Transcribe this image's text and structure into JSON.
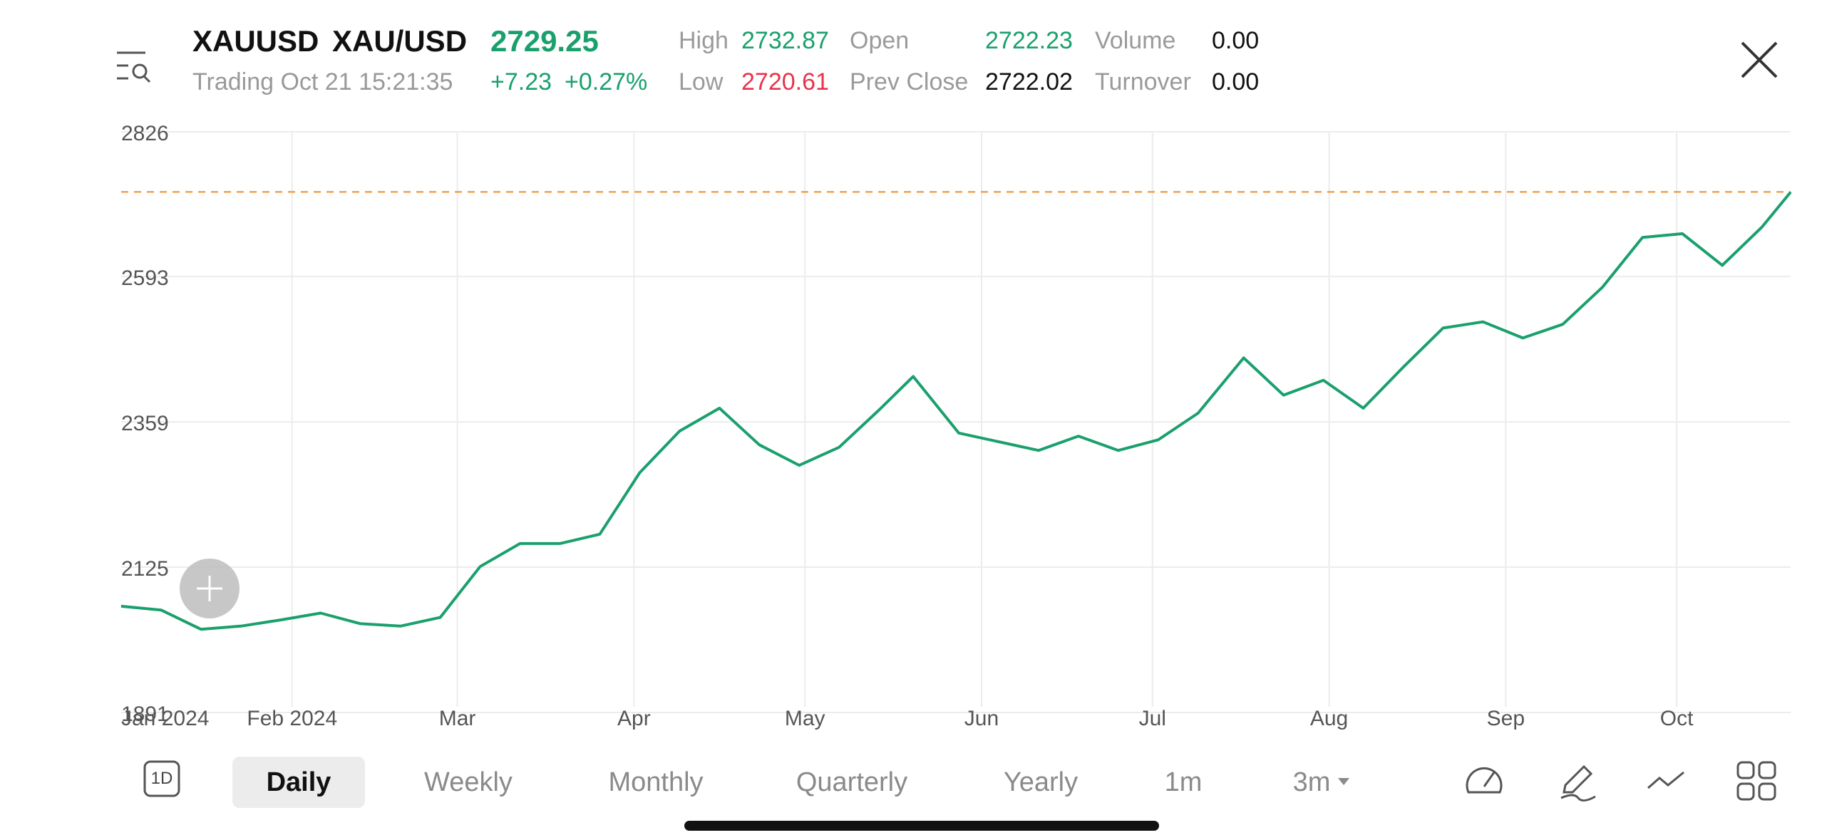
{
  "header": {
    "symbol": "XAUUSD",
    "name": "XAU/USD",
    "price": "2729.25",
    "status": "Trading Oct 21 15:21:35",
    "change": "+7.23",
    "change_pct": "+0.27%",
    "stats": {
      "high_label": "High",
      "high": "2732.87",
      "low_label": "Low",
      "low": "2720.61",
      "open_label": "Open",
      "open": "2722.23",
      "prev_close_label": "Prev Close",
      "prev_close": "2722.02",
      "volume_label": "Volume",
      "volume": "0.00",
      "turnover_label": "Turnover",
      "turnover": "0.00"
    }
  },
  "colors": {
    "up": "#1aa06d",
    "down": "#e8334a",
    "reference_line": "#f08a2a"
  },
  "icons": {
    "menu": "list-search-icon",
    "close": "close-icon",
    "add": "plus-icon",
    "one_day": "1d-icon",
    "indicator": "speedometer-icon",
    "draw": "pencil-icon",
    "line_style": "line-chart-icon",
    "grid": "grid-icon"
  },
  "toolbar": {
    "one_day_label": "1D",
    "tabs": [
      "Daily",
      "Weekly",
      "Monthly",
      "Quarterly",
      "Yearly",
      "1m",
      "3m"
    ],
    "active_tab": "Daily"
  },
  "chart_data": {
    "type": "line",
    "y_ticks": [
      2826,
      2593,
      2359,
      2125,
      1891
    ],
    "ylim": [
      1891,
      2826
    ],
    "x_ticks": [
      "Jan 2024",
      "Feb 2024",
      "Mar",
      "Apr",
      "May",
      "Jun",
      "Jul",
      "Aug",
      "Sep",
      "Oct"
    ],
    "reference_value": 2729.25,
    "series": [
      {
        "x": [
          "2024-01-02",
          "2024-01-09",
          "2024-01-16",
          "2024-01-23",
          "2024-01-30",
          "2024-02-06",
          "2024-02-13",
          "2024-02-20",
          "2024-02-27",
          "2024-03-05",
          "2024-03-12",
          "2024-03-19",
          "2024-03-26",
          "2024-04-02",
          "2024-04-09",
          "2024-04-16",
          "2024-04-23",
          "2024-04-30",
          "2024-05-07",
          "2024-05-14",
          "2024-05-20",
          "2024-05-28",
          "2024-06-04",
          "2024-06-11",
          "2024-06-18",
          "2024-06-25",
          "2024-07-02",
          "2024-07-09",
          "2024-07-17",
          "2024-07-24",
          "2024-07-31",
          "2024-08-07",
          "2024-08-14",
          "2024-08-21",
          "2024-08-28",
          "2024-09-04",
          "2024-09-11",
          "2024-09-18",
          "2024-09-25",
          "2024-10-02",
          "2024-10-09",
          "2024-10-16",
          "2024-10-21"
        ],
        "y": [
          2062,
          2056,
          2025,
          2030,
          2040,
          2051,
          2034,
          2030,
          2044,
          2126,
          2163,
          2163,
          2178,
          2277,
          2344,
          2381,
          2322,
          2289,
          2318,
          2378,
          2432,
          2341,
          2327,
          2313,
          2336,
          2313,
          2330,
          2373,
          2462,
          2402,
          2426,
          2381,
          2447,
          2510,
          2520,
          2494,
          2516,
          2576,
          2656,
          2662,
          2611,
          2673,
          2729
        ]
      }
    ]
  }
}
